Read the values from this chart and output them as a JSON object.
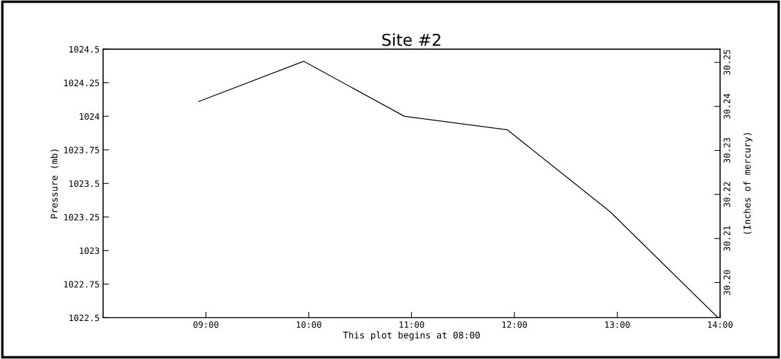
{
  "chart_data": {
    "type": "line",
    "title": "Site #2",
    "xlabel": "This plot begins at 08:00",
    "ylabel": "Pressure (mb)",
    "y2label": "(Inches of mercury)",
    "x": [
      8.93,
      9.95,
      10.93,
      11.93,
      12.93,
      13.98
    ],
    "series": [
      {
        "color": "#000000",
        "values": [
          1024.11,
          1024.41,
          1024.0,
          1023.9,
          1023.29,
          1022.5
        ]
      }
    ],
    "xlim": [
      8,
      14
    ],
    "xticks": [
      {
        "value": 9,
        "label": "09:00"
      },
      {
        "value": 10,
        "label": "10:00"
      },
      {
        "value": 11,
        "label": "11:00"
      },
      {
        "value": 12,
        "label": "12:00"
      },
      {
        "value": 13,
        "label": "13:00"
      },
      {
        "value": 14,
        "label": "14:00"
      }
    ],
    "ylim": [
      1022.5,
      1024.5
    ],
    "yticks": [
      1022.5,
      1022.75,
      1023,
      1023.25,
      1023.5,
      1023.75,
      1024,
      1024.25,
      1024.5
    ],
    "y2lim": [
      30.192,
      30.253
    ],
    "y2ticks": [
      {
        "value": 30.2,
        "label": "30.20"
      },
      {
        "value": 30.21,
        "label": "30.21"
      },
      {
        "value": 30.22,
        "label": "30.22"
      },
      {
        "value": 30.23,
        "label": "30.23"
      },
      {
        "value": 30.24,
        "label": "30.24"
      },
      {
        "value": 30.25,
        "label": "30.25"
      }
    ],
    "grid": false,
    "legend": false,
    "marker": "none",
    "line_style": "solid"
  }
}
